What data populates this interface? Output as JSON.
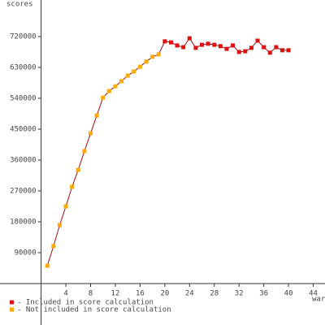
{
  "chart_data": {
    "type": "line",
    "y_label": "scores",
    "x_label": "war",
    "x": [
      1,
      2,
      3,
      4,
      5,
      6,
      7,
      8,
      9,
      10,
      11,
      12,
      13,
      14,
      15,
      16,
      17,
      18,
      19,
      20,
      21,
      22,
      23,
      24,
      25,
      26,
      27,
      28,
      29,
      30,
      31,
      32,
      33,
      34,
      35,
      36,
      37,
      38,
      39,
      40
    ],
    "series": [
      {
        "name": "- Included in score calculation",
        "color": "#dd1111",
        "values": [
          null,
          null,
          null,
          null,
          null,
          null,
          null,
          null,
          null,
          null,
          null,
          null,
          null,
          null,
          null,
          null,
          null,
          null,
          null,
          706000,
          703000,
          694000,
          689000,
          715000,
          687000,
          696000,
          699000,
          696000,
          692000,
          684000,
          694000,
          675000,
          677000,
          687000,
          708000,
          689000,
          673000,
          689000,
          680000,
          680000
        ]
      },
      {
        "name": "- Not included in score calculation",
        "color": "#ffaa00",
        "values": [
          52000,
          109000,
          170500,
          225000,
          282000,
          331500,
          386000,
          438000,
          490000,
          542000,
          561000,
          575000,
          590000,
          606000,
          618000,
          632000,
          647000,
          661000,
          668000,
          null,
          null,
          null,
          null,
          null,
          null,
          null,
          null,
          null,
          null,
          null,
          null,
          null,
          null,
          null,
          null,
          null,
          null,
          null,
          null,
          null
        ]
      }
    ],
    "line_color": "#991111",
    "xlim": [
      -6.65,
      45.9
    ],
    "ylim": [
      -120800,
      826500
    ],
    "xticks": [
      4,
      8,
      12,
      16,
      20,
      24,
      28,
      32,
      36,
      40,
      44
    ],
    "yticks": [
      90000,
      180000,
      270000,
      360000,
      450000,
      540000,
      630000,
      720000
    ]
  }
}
